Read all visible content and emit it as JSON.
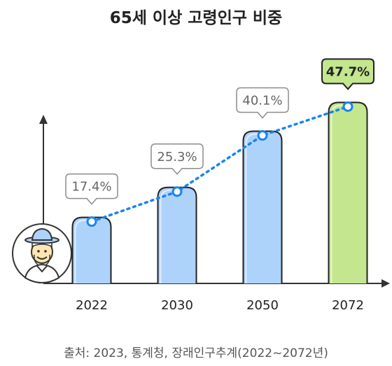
{
  "chart_data": {
    "type": "bar",
    "title": "65세 이상 고령인구 비중",
    "categories": [
      "2022",
      "2030",
      "2050",
      "2072"
    ],
    "values": [
      17.4,
      25.3,
      40.1,
      47.7
    ],
    "value_labels": [
      "17.4%",
      "25.3%",
      "40.1%",
      "47.7%"
    ],
    "unit": "%",
    "ylim": [
      0,
      52
    ],
    "grid": false,
    "trend_line": "dotted",
    "highlight_index": 3,
    "colors": {
      "bar": "#aed3fb",
      "bar_highlight": "#c3e68e",
      "outline": "#222222",
      "trend": "#1a84ee",
      "callout_border": "#8c8c8c",
      "callout_highlight_fill": "#c3e68e"
    },
    "source": "출처: 2023, 통계청, 장래인구추계(2022~2072년)",
    "icons": [
      "elderly-person-icon"
    ]
  }
}
